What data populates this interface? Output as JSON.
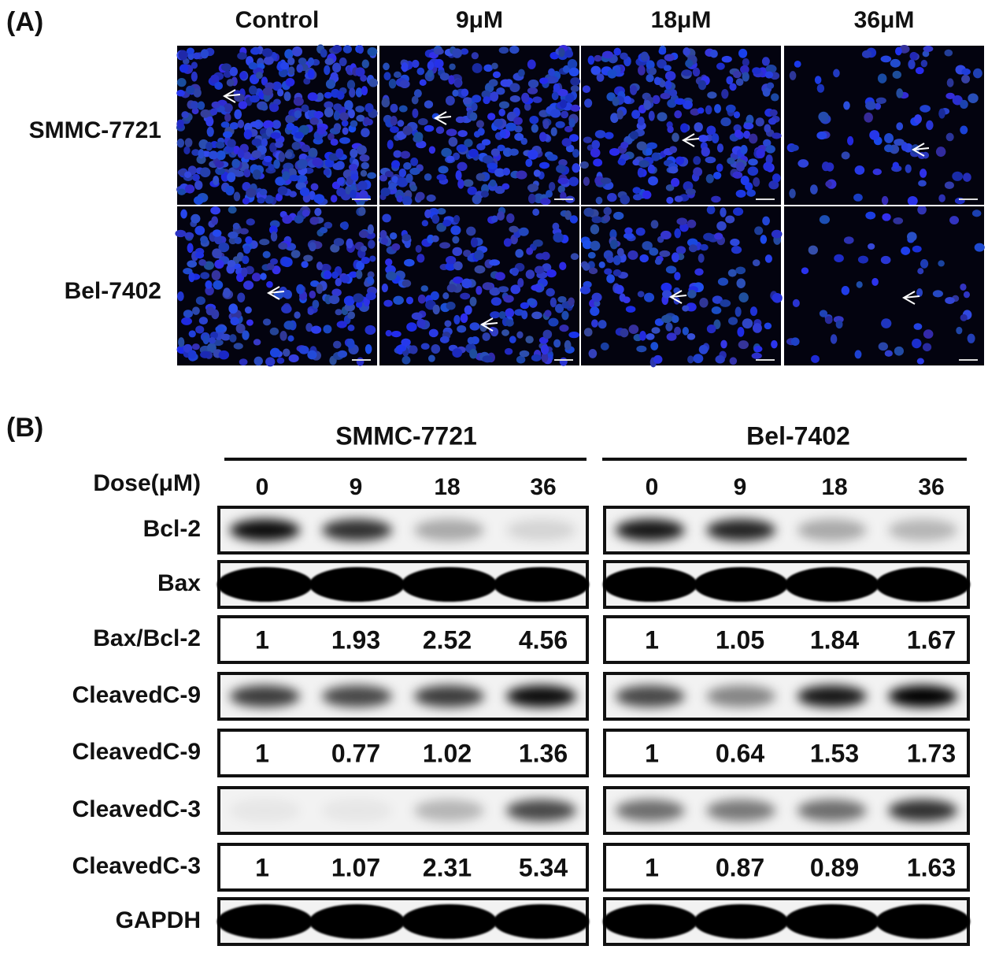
{
  "panel_a": {
    "label": "(A)",
    "columns": [
      "Control",
      "9μM",
      "18μM",
      "36μM"
    ],
    "rows": [
      "SMMC-7721",
      "Bel-7402"
    ]
  },
  "panel_b": {
    "label": "(B)",
    "dose_label": "Dose(μM)",
    "groups": [
      {
        "name": "SMMC-7721",
        "doses": [
          "0",
          "9",
          "18",
          "36"
        ]
      },
      {
        "name": "Bel-7402",
        "doses": [
          "0",
          "9",
          "18",
          "36"
        ]
      }
    ],
    "rows": [
      {
        "label": "Bcl-2"
      },
      {
        "label": "Bax"
      },
      {
        "label": "Bax/Bcl-2",
        "values": [
          [
            1,
            1.93,
            2.52,
            4.56
          ],
          [
            1,
            1.05,
            1.84,
            1.67
          ]
        ]
      },
      {
        "label": "CleavedC-9"
      },
      {
        "label": "CleavedC-9",
        "values": [
          [
            1,
            0.77,
            1.02,
            1.36
          ],
          [
            1,
            0.64,
            1.53,
            1.73
          ]
        ]
      },
      {
        "label": "CleavedC-3"
      },
      {
        "label": "CleavedC-3",
        "values": [
          [
            1,
            1.07,
            2.31,
            5.34
          ],
          [
            1,
            0.87,
            0.89,
            1.63
          ]
        ]
      },
      {
        "label": "GAPDH"
      }
    ]
  }
}
